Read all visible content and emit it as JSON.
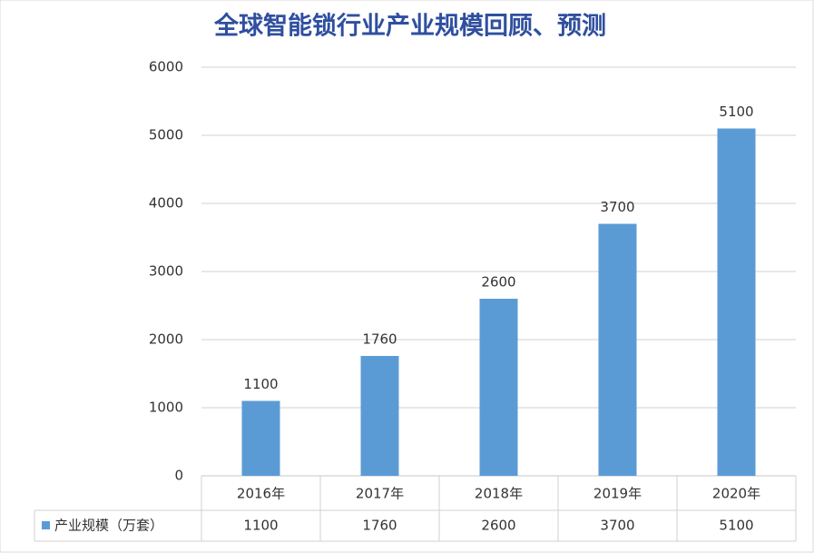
{
  "chart_data": {
    "type": "bar",
    "title": "全球智能锁行业产业规模回顾、预测",
    "categories": [
      "2016年",
      "2017年",
      "2018年",
      "2019年",
      "2020年"
    ],
    "series": [
      {
        "name": "产业规模（万套）",
        "color": "#5b9bd5",
        "values": [
          1100,
          1760,
          2600,
          3700,
          5100
        ]
      }
    ],
    "ylim": [
      0,
      6000
    ],
    "yticks": [
      0,
      1000,
      2000,
      3000,
      4000,
      5000,
      6000
    ],
    "grid": true
  }
}
